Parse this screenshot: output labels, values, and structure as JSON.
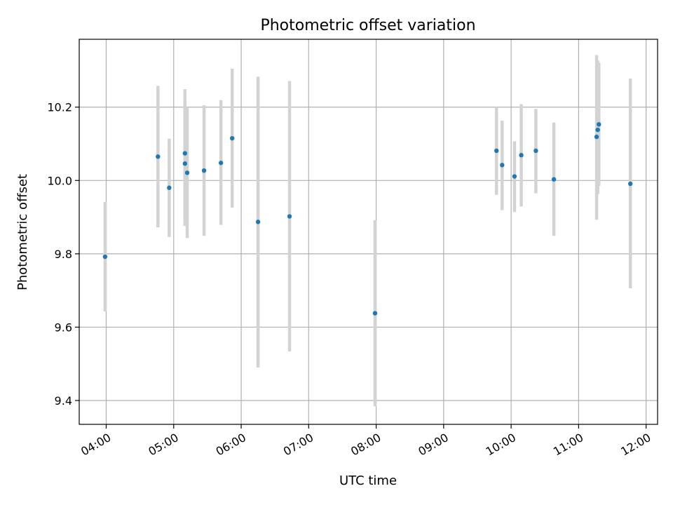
{
  "chart_data": {
    "type": "scatter",
    "title": "Photometric offset variation",
    "xlabel": "UTC time",
    "ylabel": "Photometric offset",
    "x_unit": "hours",
    "xlim": [
      3.6,
      12.17
    ],
    "ylim": [
      9.335,
      10.385
    ],
    "x_ticks": [
      {
        "value": 4,
        "label": "04:00"
      },
      {
        "value": 5,
        "label": "05:00"
      },
      {
        "value": 6,
        "label": "06:00"
      },
      {
        "value": 7,
        "label": "07:00"
      },
      {
        "value": 8,
        "label": "08:00"
      },
      {
        "value": 9,
        "label": "09:00"
      },
      {
        "value": 10,
        "label": "10:00"
      },
      {
        "value": 11,
        "label": "11:00"
      },
      {
        "value": 12,
        "label": "12:00"
      }
    ],
    "y_ticks": [
      {
        "value": 9.4,
        "label": "9.4"
      },
      {
        "value": 9.6,
        "label": "9.6"
      },
      {
        "value": 9.8,
        "label": "9.8"
      },
      {
        "value": 10.0,
        "label": "10.0"
      },
      {
        "value": 10.2,
        "label": "10.2"
      }
    ],
    "grid": true,
    "point_color": "#1f77b4",
    "errorbar_color": "#d3d3d3",
    "points": [
      {
        "x": "03:59",
        "y": 9.792,
        "low": 9.643,
        "high": 9.941
      },
      {
        "x": "04:46",
        "y": 10.065,
        "low": 9.872,
        "high": 10.258
      },
      {
        "x": "04:56",
        "y": 9.98,
        "low": 9.846,
        "high": 10.114
      },
      {
        "x": "05:10",
        "y": 10.074,
        "low": 9.897,
        "high": 10.249
      },
      {
        "x": "05:10",
        "y": 10.046,
        "low": 9.876,
        "high": 10.217
      },
      {
        "x": "05:12",
        "y": 10.021,
        "low": 9.843,
        "high": 10.2
      },
      {
        "x": "05:27",
        "y": 10.027,
        "low": 9.849,
        "high": 10.205
      },
      {
        "x": "05:42",
        "y": 10.048,
        "low": 9.879,
        "high": 10.219
      },
      {
        "x": "05:52",
        "y": 10.115,
        "low": 9.926,
        "high": 10.305
      },
      {
        "x": "06:15",
        "y": 9.887,
        "low": 9.49,
        "high": 10.283
      },
      {
        "x": "06:43",
        "y": 9.902,
        "low": 9.534,
        "high": 10.271
      },
      {
        "x": "07:59",
        "y": 9.638,
        "low": 9.384,
        "high": 9.892
      },
      {
        "x": "09:47",
        "y": 10.081,
        "low": 9.961,
        "high": 10.2
      },
      {
        "x": "09:52",
        "y": 10.042,
        "low": 9.919,
        "high": 10.163
      },
      {
        "x": "10:03",
        "y": 10.011,
        "low": 9.914,
        "high": 10.107
      },
      {
        "x": "10:09",
        "y": 10.069,
        "low": 9.929,
        "high": 10.208
      },
      {
        "x": "10:22",
        "y": 10.081,
        "low": 9.965,
        "high": 10.195
      },
      {
        "x": "10:38",
        "y": 10.003,
        "low": 9.849,
        "high": 10.158
      },
      {
        "x": "11:16",
        "y": 10.119,
        "low": 9.893,
        "high": 10.342
      },
      {
        "x": "11:17",
        "y": 10.138,
        "low": 9.963,
        "high": 10.327
      },
      {
        "x": "11:18",
        "y": 10.153,
        "low": 9.985,
        "high": 10.321
      },
      {
        "x": "11:46",
        "y": 9.991,
        "low": 9.706,
        "high": 10.278
      }
    ]
  }
}
